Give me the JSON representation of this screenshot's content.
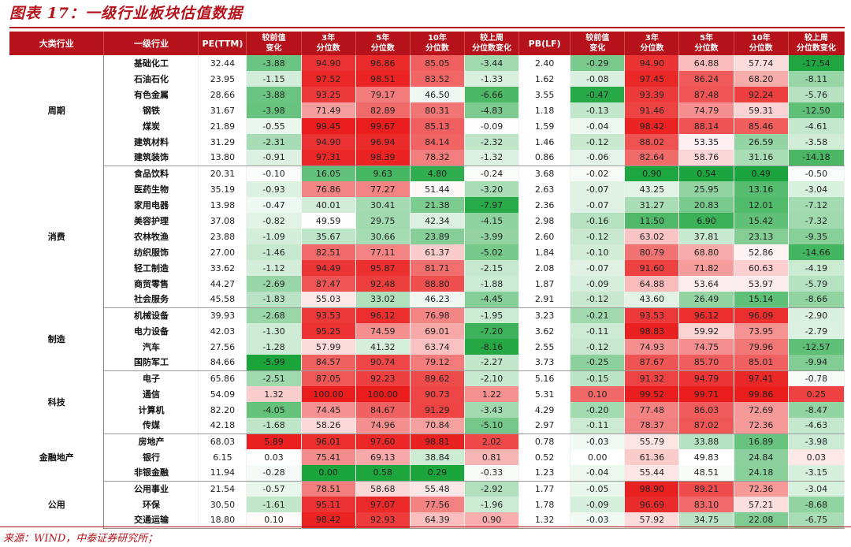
{
  "title": "图表 17：一级行业板块估值数据",
  "source": "来源：WIND，中泰证券研究所；",
  "headers": [
    "大类行业",
    "一级行业",
    "PE(TTM)",
    "较前值\n变化",
    "3年\n分位数",
    "5年\n分位数",
    "10年\n分位数",
    "较上周\n分位数变化",
    "PB(LF)",
    "较前值\n变化",
    "3年\n分位数",
    "5年\n分位数",
    "10年\n分位数",
    "较上周\n分位数变化"
  ],
  "groups": [
    {
      "name": "周期",
      "rows": [
        [
          "基础化工",
          "32.44",
          "-3.88",
          "94.90",
          "96.86",
          "85.05",
          "-3.44",
          "2.40",
          "-0.29",
          "94.90",
          "64.88",
          "57.74",
          "-17.54"
        ],
        [
          "石油石化",
          "23.95",
          "-1.15",
          "97.52",
          "98.51",
          "83.52",
          "-1.33",
          "1.62",
          "-0.08",
          "97.45",
          "86.24",
          "68.20",
          "-8.11"
        ],
        [
          "有色金属",
          "28.66",
          "-3.88",
          "93.25",
          "79.17",
          "46.50",
          "-6.66",
          "3.55",
          "-0.47",
          "93.39",
          "87.48",
          "92.24",
          "-5.76"
        ],
        [
          "钢铁",
          "31.67",
          "-3.98",
          "71.49",
          "82.89",
          "80.31",
          "-4.83",
          "1.18",
          "-0.13",
          "91.46",
          "74.79",
          "59.31",
          "-12.50"
        ],
        [
          "煤炭",
          "21.89",
          "-0.55",
          "99.45",
          "99.67",
          "85.13",
          "-0.09",
          "1.59",
          "-0.04",
          "98.42",
          "88.14",
          "85.46",
          "-4.61"
        ],
        [
          "建筑材料",
          "31.29",
          "-2.31",
          "94.90",
          "96.94",
          "84.14",
          "-2.32",
          "1.46",
          "-0.12",
          "88.02",
          "53.35",
          "26.59",
          "-3.58"
        ],
        [
          "建筑装饰",
          "13.80",
          "-0.91",
          "97.31",
          "98.39",
          "78.32",
          "-1.32",
          "0.86",
          "-0.06",
          "82.64",
          "58.76",
          "31.16",
          "-14.18"
        ]
      ]
    },
    {
      "name": "消费",
      "rows": [
        [
          "食品饮料",
          "20.31",
          "-0.10",
          "16.05",
          "9.63",
          "4.80",
          "-0.24",
          "3.68",
          "-0.02",
          "0.90",
          "0.54",
          "0.49",
          "-0.50"
        ],
        [
          "医药生物",
          "35.19",
          "-0.93",
          "76.86",
          "77.27",
          "51.44",
          "-3.20",
          "2.63",
          "-0.07",
          "43.25",
          "25.95",
          "13.16",
          "-3.04"
        ],
        [
          "家用电器",
          "13.98",
          "-0.47",
          "40.01",
          "30.41",
          "21.38",
          "-7.97",
          "2.36",
          "-0.07",
          "31.27",
          "20.83",
          "12.01",
          "-7.12"
        ],
        [
          "美容护理",
          "37.08",
          "-0.82",
          "49.59",
          "29.75",
          "42.34",
          "-4.15",
          "2.98",
          "-0.16",
          "11.50",
          "6.90",
          "15.42",
          "-7.32"
        ],
        [
          "农林牧渔",
          "23.88",
          "-1.09",
          "35.67",
          "30.66",
          "23.89",
          "-3.99",
          "2.60",
          "-0.12",
          "63.02",
          "37.81",
          "23.13",
          "-9.35"
        ],
        [
          "纺织服饰",
          "27.00",
          "-1.46",
          "82.51",
          "77.11",
          "61.37",
          "-5.02",
          "1.84",
          "-0.10",
          "80.79",
          "68.80",
          "52.86",
          "-14.66"
        ],
        [
          "轻工制造",
          "33.62",
          "-1.12",
          "94.49",
          "95.87",
          "81.71",
          "-2.15",
          "2.08",
          "-0.07",
          "91.60",
          "71.82",
          "60.63",
          "-4.19"
        ],
        [
          "商贸零售",
          "44.27",
          "-2.69",
          "87.47",
          "92.48",
          "88.80",
          "-1.88",
          "1.87",
          "-0.09",
          "64.88",
          "53.64",
          "53.97",
          "-5.79"
        ],
        [
          "社会服务",
          "45.58",
          "-1.83",
          "55.03",
          "33.02",
          "46.23",
          "-4.45",
          "2.91",
          "-0.12",
          "43.60",
          "26.49",
          "15.14",
          "-8.66"
        ]
      ]
    },
    {
      "name": "制造",
      "rows": [
        [
          "机械设备",
          "39.93",
          "-2.68",
          "93.53",
          "96.12",
          "76.98",
          "-1.95",
          "3.23",
          "-0.21",
          "93.53",
          "96.12",
          "96.09",
          "-2.90"
        ],
        [
          "电力设备",
          "42.03",
          "-1.30",
          "95.25",
          "74.59",
          "69.01",
          "-7.20",
          "3.62",
          "-0.11",
          "98.83",
          "59.92",
          "73.95",
          "-2.79"
        ],
        [
          "汽车",
          "27.56",
          "-1.28",
          "57.99",
          "41.32",
          "63.74",
          "-8.16",
          "2.55",
          "-0.12",
          "74.93",
          "74.75",
          "79.96",
          "-12.57"
        ],
        [
          "国防军工",
          "84.66",
          "-5.99",
          "84.57",
          "90.74",
          "79.12",
          "-2.27",
          "3.73",
          "-0.25",
          "87.67",
          "85.70",
          "85.01",
          "-9.94"
        ]
      ]
    },
    {
      "name": "科技",
      "rows": [
        [
          "电子",
          "65.86",
          "-2.51",
          "87.05",
          "92.23",
          "89.62",
          "-2.10",
          "5.16",
          "-0.15",
          "91.32",
          "94.79",
          "97.41",
          "-0.78"
        ],
        [
          "通信",
          "54.09",
          "1.32",
          "100.00",
          "100.00",
          "90.73",
          "1.22",
          "5.31",
          "0.10",
          "99.52",
          "99.71",
          "99.86",
          "0.25"
        ],
        [
          "计算机",
          "82.20",
          "-4.05",
          "74.45",
          "84.67",
          "91.29",
          "-3.43",
          "4.29",
          "-0.20",
          "77.48",
          "86.03",
          "72.69",
          "-8.47"
        ],
        [
          "传媒",
          "42.18",
          "-1.68",
          "58.26",
          "74.96",
          "70.84",
          "-5.10",
          "2.97",
          "-0.11",
          "78.37",
          "87.02",
          "72.36",
          "-4.63"
        ]
      ]
    },
    {
      "name": "金融地产",
      "rows": [
        [
          "房地产",
          "68.03",
          "5.89",
          "96.01",
          "97.60",
          "98.81",
          "2.02",
          "0.78",
          "-0.03",
          "55.79",
          "33.88",
          "16.89",
          "-3.98"
        ],
        [
          "银行",
          "6.15",
          "0.03",
          "75.41",
          "69.13",
          "38.84",
          "0.81",
          "0.52",
          "0.00",
          "61.36",
          "49.83",
          "24.84",
          "0.03"
        ],
        [
          "非银金融",
          "11.94",
          "-0.28",
          "0.00",
          "0.58",
          "0.29",
          "-0.33",
          "1.23",
          "-0.04",
          "55.44",
          "48.51",
          "24.18",
          "-3.15"
        ]
      ]
    },
    {
      "name": "公用",
      "rows": [
        [
          "公用事业",
          "21.54",
          "-0.57",
          "78.51",
          "58.68",
          "55.48",
          "-2.92",
          "1.77",
          "-0.05",
          "98.90",
          "89.21",
          "72.36",
          "-3.04"
        ],
        [
          "环保",
          "30.50",
          "-1.61",
          "95.11",
          "97.07",
          "77.56",
          "-1.96",
          "1.78",
          "-0.09",
          "96.69",
          "83.10",
          "57.21",
          "-8.68"
        ],
        [
          "交通运输",
          "18.80",
          "0.10",
          "98.42",
          "92.93",
          "64.39",
          "0.90",
          "1.32",
          "-0.03",
          "57.92",
          "34.75",
          "22.08",
          "-6.75"
        ]
      ]
    }
  ]
}
